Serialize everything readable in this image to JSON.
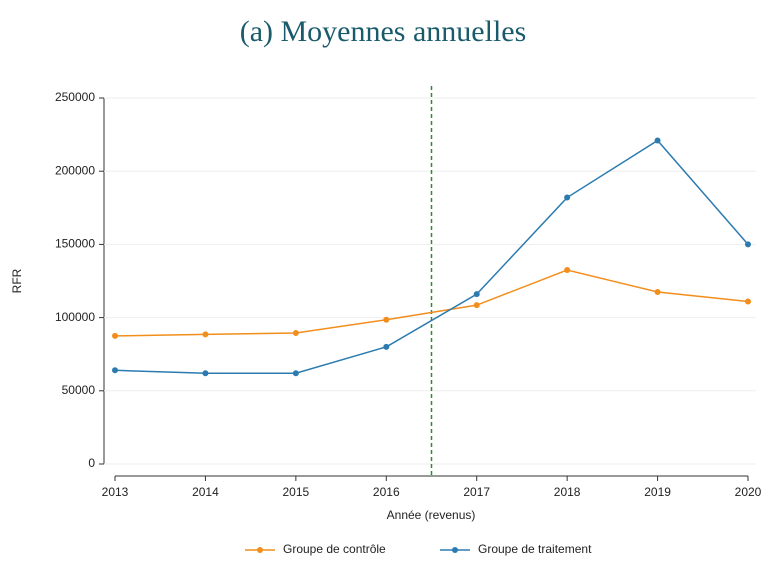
{
  "chart_data": {
    "type": "line",
    "title": "(a) Moyennes annuelles",
    "x_label": "Année (revenus)",
    "y_label": "RFR",
    "x": [
      2013,
      2014,
      2015,
      2016,
      2017,
      2018,
      2019,
      2020
    ],
    "series": [
      {
        "name": "Groupe de contrôle",
        "color": "#f28e1c",
        "values": [
          87500,
          88500,
          89500,
          98500,
          108500,
          132500,
          117500,
          111000
        ]
      },
      {
        "name": "Groupe de traitement",
        "color": "#2b7bb0",
        "values": [
          64000,
          62000,
          62000,
          80000,
          116000,
          182000,
          221000,
          150000
        ]
      }
    ],
    "xlim": [
      2013,
      2020
    ],
    "xticks": [
      2013,
      2014,
      2015,
      2016,
      2017,
      2018,
      2019,
      2020
    ],
    "ylim": [
      0,
      250000
    ],
    "yticks": [
      0,
      50000,
      100000,
      150000,
      200000,
      250000
    ],
    "grid": true,
    "vline": {
      "x": 2016.5,
      "color": "#2e8b2e"
    },
    "legend": "bottom"
  }
}
